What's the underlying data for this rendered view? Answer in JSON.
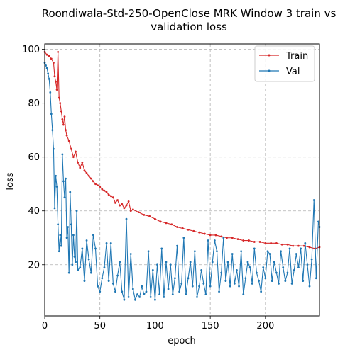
{
  "chart_data": {
    "type": "line",
    "title": "Roondiwala-Std-250-OpenClose MRK Window 3 train vs validation loss",
    "title_lines": [
      "Roondiwala-Std-250-OpenClose MRK Window 3 train vs",
      "validation loss"
    ],
    "xlabel": "epoch",
    "ylabel": "loss",
    "xlim": [
      0,
      249
    ],
    "ylim": [
      1,
      102
    ],
    "x_ticks": [
      0,
      50,
      100,
      150,
      200
    ],
    "y_ticks": [
      20,
      40,
      60,
      80,
      100
    ],
    "grid": true,
    "grid_style": "dashed",
    "legend_position": "top-right",
    "series": [
      {
        "name": "Train",
        "color": "#d62728",
        "points": [
          [
            0,
            99
          ],
          [
            2,
            98
          ],
          [
            4,
            97.5
          ],
          [
            6,
            96.5
          ],
          [
            8,
            95
          ],
          [
            9,
            90
          ],
          [
            10,
            88
          ],
          [
            11,
            85
          ],
          [
            12,
            99
          ],
          [
            13,
            82
          ],
          [
            14,
            80
          ],
          [
            15,
            77
          ],
          [
            16,
            74
          ],
          [
            17,
            72
          ],
          [
            18,
            75
          ],
          [
            19,
            70
          ],
          [
            20,
            68
          ],
          [
            22,
            66
          ],
          [
            24,
            63
          ],
          [
            26,
            60
          ],
          [
            28,
            62
          ],
          [
            30,
            58
          ],
          [
            32,
            56
          ],
          [
            34,
            58
          ],
          [
            36,
            55
          ],
          [
            38,
            54
          ],
          [
            40,
            53
          ],
          [
            42,
            52
          ],
          [
            44,
            51
          ],
          [
            46,
            50
          ],
          [
            48,
            49.5
          ],
          [
            50,
            49
          ],
          [
            52,
            48
          ],
          [
            54,
            47.5
          ],
          [
            56,
            47
          ],
          [
            58,
            46
          ],
          [
            60,
            45.5
          ],
          [
            62,
            45
          ],
          [
            64,
            43
          ],
          [
            66,
            44
          ],
          [
            68,
            42
          ],
          [
            70,
            42.5
          ],
          [
            72,
            41
          ],
          [
            74,
            42
          ],
          [
            76,
            43.5
          ],
          [
            78,
            40
          ],
          [
            80,
            40.5
          ],
          [
            85,
            39.5
          ],
          [
            90,
            38.5
          ],
          [
            95,
            38
          ],
          [
            100,
            37
          ],
          [
            105,
            36
          ],
          [
            110,
            35.5
          ],
          [
            115,
            35
          ],
          [
            120,
            34
          ],
          [
            125,
            33.5
          ],
          [
            130,
            33
          ],
          [
            135,
            32.5
          ],
          [
            140,
            32
          ],
          [
            145,
            31.5
          ],
          [
            150,
            31
          ],
          [
            155,
            31
          ],
          [
            160,
            30.5
          ],
          [
            165,
            30
          ],
          [
            170,
            30
          ],
          [
            175,
            29.5
          ],
          [
            180,
            29
          ],
          [
            185,
            29
          ],
          [
            190,
            28.5
          ],
          [
            195,
            28.5
          ],
          [
            200,
            28
          ],
          [
            205,
            28
          ],
          [
            210,
            28
          ],
          [
            215,
            27.5
          ],
          [
            220,
            27.5
          ],
          [
            225,
            27
          ],
          [
            230,
            27
          ],
          [
            235,
            27
          ],
          [
            240,
            26.5
          ],
          [
            245,
            26
          ],
          [
            249,
            26.5
          ]
        ]
      },
      {
        "name": "Val",
        "color": "#1f77b4",
        "points": [
          [
            0,
            95
          ],
          [
            1,
            94
          ],
          [
            2,
            93
          ],
          [
            3,
            91
          ],
          [
            4,
            89
          ],
          [
            5,
            84
          ],
          [
            6,
            76
          ],
          [
            7,
            70
          ],
          [
            8,
            63
          ],
          [
            9,
            41
          ],
          [
            10,
            53
          ],
          [
            11,
            49
          ],
          [
            12,
            35
          ],
          [
            13,
            25
          ],
          [
            14,
            31
          ],
          [
            15,
            27
          ],
          [
            16,
            61
          ],
          [
            17,
            51
          ],
          [
            18,
            45
          ],
          [
            19,
            52
          ],
          [
            20,
            30
          ],
          [
            21,
            34
          ],
          [
            22,
            17
          ],
          [
            23,
            47
          ],
          [
            24,
            35
          ],
          [
            25,
            20
          ],
          [
            26,
            31
          ],
          [
            27,
            23
          ],
          [
            28,
            21
          ],
          [
            29,
            40
          ],
          [
            30,
            18
          ],
          [
            32,
            19
          ],
          [
            34,
            26
          ],
          [
            36,
            14
          ],
          [
            38,
            29
          ],
          [
            40,
            22
          ],
          [
            42,
            17
          ],
          [
            44,
            31
          ],
          [
            46,
            26
          ],
          [
            48,
            12
          ],
          [
            50,
            10
          ],
          [
            52,
            15
          ],
          [
            54,
            19
          ],
          [
            56,
            28
          ],
          [
            58,
            14
          ],
          [
            60,
            28
          ],
          [
            62,
            13
          ],
          [
            64,
            10
          ],
          [
            66,
            16
          ],
          [
            68,
            21
          ],
          [
            70,
            10
          ],
          [
            72,
            7
          ],
          [
            74,
            37
          ],
          [
            76,
            8
          ],
          [
            78,
            24
          ],
          [
            80,
            11
          ],
          [
            82,
            7
          ],
          [
            84,
            9
          ],
          [
            86,
            8
          ],
          [
            88,
            12
          ],
          [
            90,
            9
          ],
          [
            92,
            10
          ],
          [
            94,
            25
          ],
          [
            96,
            8
          ],
          [
            98,
            18
          ],
          [
            100,
            7
          ],
          [
            102,
            20
          ],
          [
            104,
            9
          ],
          [
            106,
            26
          ],
          [
            108,
            8
          ],
          [
            110,
            21
          ],
          [
            112,
            11
          ],
          [
            114,
            20
          ],
          [
            116,
            9
          ],
          [
            118,
            15
          ],
          [
            120,
            27
          ],
          [
            122,
            10
          ],
          [
            124,
            13
          ],
          [
            126,
            30
          ],
          [
            128,
            9
          ],
          [
            130,
            15
          ],
          [
            132,
            21
          ],
          [
            134,
            12
          ],
          [
            136,
            25
          ],
          [
            138,
            8
          ],
          [
            140,
            12
          ],
          [
            142,
            18
          ],
          [
            144,
            13
          ],
          [
            146,
            9
          ],
          [
            148,
            29
          ],
          [
            150,
            12
          ],
          [
            152,
            21
          ],
          [
            154,
            29
          ],
          [
            156,
            25
          ],
          [
            158,
            10
          ],
          [
            160,
            17
          ],
          [
            162,
            30
          ],
          [
            164,
            14
          ],
          [
            166,
            21
          ],
          [
            168,
            12
          ],
          [
            170,
            24
          ],
          [
            172,
            13
          ],
          [
            174,
            18
          ],
          [
            176,
            12
          ],
          [
            178,
            25
          ],
          [
            180,
            9
          ],
          [
            182,
            15
          ],
          [
            184,
            21
          ],
          [
            186,
            19
          ],
          [
            188,
            13
          ],
          [
            190,
            26
          ],
          [
            192,
            17
          ],
          [
            194,
            14
          ],
          [
            196,
            10
          ],
          [
            198,
            19
          ],
          [
            200,
            15
          ],
          [
            202,
            25
          ],
          [
            204,
            24
          ],
          [
            206,
            14
          ],
          [
            208,
            21
          ],
          [
            210,
            17
          ],
          [
            212,
            13
          ],
          [
            214,
            25
          ],
          [
            216,
            19
          ],
          [
            218,
            14
          ],
          [
            220,
            17
          ],
          [
            222,
            26
          ],
          [
            224,
            13
          ],
          [
            226,
            18
          ],
          [
            228,
            24
          ],
          [
            230,
            19
          ],
          [
            232,
            26
          ],
          [
            234,
            14
          ],
          [
            236,
            28
          ],
          [
            238,
            20
          ],
          [
            240,
            12
          ],
          [
            242,
            22
          ],
          [
            244,
            44
          ],
          [
            246,
            15
          ],
          [
            248,
            36
          ],
          [
            249,
            34
          ]
        ]
      }
    ]
  }
}
